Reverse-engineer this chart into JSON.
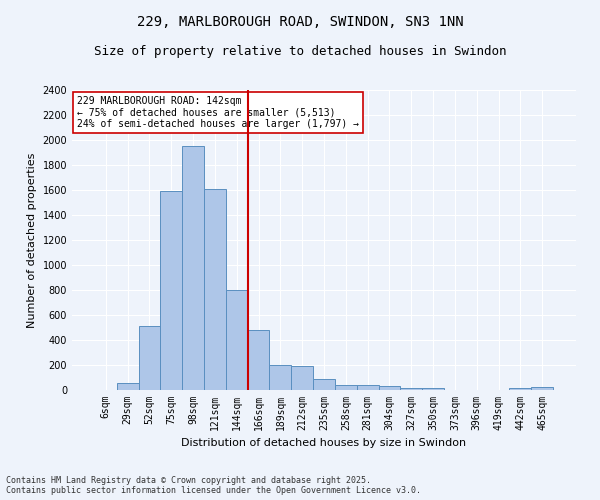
{
  "title": "229, MARLBOROUGH ROAD, SWINDON, SN3 1NN",
  "subtitle": "Size of property relative to detached houses in Swindon",
  "xlabel": "Distribution of detached houses by size in Swindon",
  "ylabel": "Number of detached properties",
  "categories": [
    "6sqm",
    "29sqm",
    "52sqm",
    "75sqm",
    "98sqm",
    "121sqm",
    "144sqm",
    "166sqm",
    "189sqm",
    "212sqm",
    "235sqm",
    "258sqm",
    "281sqm",
    "304sqm",
    "327sqm",
    "350sqm",
    "373sqm",
    "396sqm",
    "419sqm",
    "442sqm",
    "465sqm"
  ],
  "values": [
    0,
    55,
    510,
    1590,
    1950,
    1610,
    800,
    480,
    200,
    195,
    90,
    40,
    40,
    30,
    20,
    15,
    0,
    0,
    0,
    20,
    25
  ],
  "bar_color": "#aec6e8",
  "bar_edge_color": "#5a8fc0",
  "vline_color": "#cc0000",
  "annotation_text": "229 MARLBOROUGH ROAD: 142sqm\n← 75% of detached houses are smaller (5,513)\n24% of semi-detached houses are larger (1,797) →",
  "annotation_box_color": "#ffffff",
  "annotation_box_edge": "#cc0000",
  "ylim": [
    0,
    2400
  ],
  "yticks": [
    0,
    200,
    400,
    600,
    800,
    1000,
    1200,
    1400,
    1600,
    1800,
    2000,
    2200,
    2400
  ],
  "footer": "Contains HM Land Registry data © Crown copyright and database right 2025.\nContains public sector information licensed under the Open Government Licence v3.0.",
  "bg_color": "#eef3fb",
  "plot_bg_color": "#eef3fb",
  "title_fontsize": 10,
  "subtitle_fontsize": 9,
  "axis_label_fontsize": 8,
  "tick_fontsize": 7,
  "footer_fontsize": 6,
  "annotation_fontsize": 7
}
